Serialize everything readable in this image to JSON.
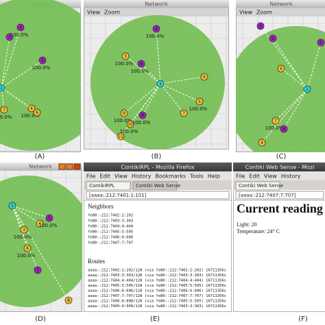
{
  "panels": [
    {
      "label": "(A)",
      "window_title": "Network",
      "nodes": [
        {
          "id": "1",
          "color": "#2fd6d0"
        },
        {
          "id": "2",
          "color": "#a020c0",
          "label": "100.0%"
        },
        {
          "id": "3",
          "color": "#a020c0"
        },
        {
          "id": "5",
          "color": "#a020c0",
          "label": "100.0%"
        },
        {
          "id": "4",
          "color": "#f2c230",
          "label": "100.0%"
        },
        {
          "id": "6",
          "color": "#f2c230"
        },
        {
          "id": "7",
          "color": "#f2c230",
          "label": "100.0%"
        }
      ]
    },
    {
      "label": "(B)",
      "window_title": "Network",
      "menu": [
        "View",
        "Zoom"
      ],
      "nodes": [
        {
          "id": "1",
          "color": "#2fd6d0"
        },
        {
          "id": "2",
          "color": "#a020c0",
          "label": "100.0%"
        },
        {
          "id": "3",
          "color": "#f2c230",
          "label": "100.0%"
        },
        {
          "id": "4",
          "color": "#a020c0",
          "label": "100.0%"
        },
        {
          "id": "6",
          "color": "#f2c230"
        },
        {
          "id": "5",
          "color": "#f2c230",
          "label": "100.0%"
        },
        {
          "id": "7",
          "color": "#f2c230"
        },
        {
          "id": "8",
          "color": "#a020c0",
          "label": "100.0%"
        },
        {
          "id": "9",
          "color": "#f2c230",
          "label": "100.0%"
        },
        {
          "id": "10",
          "color": "#f2c230",
          "label": "100.0%"
        },
        {
          "id": "11",
          "color": "#f2c230"
        }
      ]
    },
    {
      "label": "(C)",
      "window_title": "Network",
      "menu": [
        "View",
        "Zoom"
      ],
      "nodes": [
        {
          "id": "1",
          "color": "#2fd6d0"
        },
        {
          "id": "3",
          "color": "#a020c0"
        },
        {
          "id": "2",
          "color": "#a020c0"
        },
        {
          "id": "5",
          "color": "#a020c0"
        },
        {
          "id": "6",
          "color": "#f2c230"
        },
        {
          "id": "7",
          "color": "#f2c230",
          "label": "100.0%"
        },
        {
          "id": "8",
          "color": "#a020c0"
        },
        {
          "id": "4",
          "color": "#f2c230"
        }
      ]
    },
    {
      "label": "(D)",
      "window_title": "Network",
      "nodes": [
        {
          "id": "1",
          "color": "#2fd6d0"
        },
        {
          "id": "3",
          "color": "#f2c230",
          "label": "100.0%"
        },
        {
          "id": "4",
          "color": "#f2c230"
        },
        {
          "id": "5",
          "color": "#a020c0",
          "label": "100.0%"
        },
        {
          "id": "6",
          "color": "#f2c230",
          "label": "100.0%"
        },
        {
          "id": "7",
          "color": "#a020c0"
        },
        {
          "id": "8",
          "color": "#f2c230"
        }
      ]
    }
  ],
  "browser_e": {
    "label": "(E)",
    "window_title": "ContikiRPL - Mozilla Firefox",
    "menu": [
      "File",
      "Edit",
      "View",
      "History",
      "Bookmarks",
      "Tools",
      "Help"
    ],
    "tabs": [
      "ContikiRPL",
      "Contiki Web Sense"
    ],
    "url": "[aaaa::212:7401:1:101]",
    "neighbors_heading": "Neighbors",
    "neighbors": [
      "fe80::212:7402:2:202",
      "fe80::212:7403:3:303",
      "fe80::212:7404:4:404",
      "fe80::212:7405:5:505",
      "fe80::212:7406:6:606",
      "fe80::212:7407:7:707"
    ],
    "routes_heading": "Routes",
    "routes": [
      "aaaa::212:7402:2:202/128 (via fe80::212:7402:2:202) 16711356s",
      "aaaa::212:7403:3:303/128 (via fe80::212:7403:3:303) 16711356s",
      "aaaa::212:7404:4:404/128 (via fe80::212:7404:4:404) 16711356s",
      "aaaa::212:7405:5:505/128 (via fe80::212:7405:5:505) 16711356s",
      "aaaa::212:7406:6:606/128 (via fe80::212:7406:6:606) 16711356s",
      "aaaa::212:7407:7:707/128 (via fe80::212:7407:7:707) 16711356s",
      "aaaa::212:7408:8:808/128 (via fe80::212:7405:5:505) 16711356s",
      "aaaa::212:7409:9:909/128 (via fe80::212:7403:3:303) 16711356s"
    ]
  },
  "browser_f": {
    "label": "(F)",
    "window_title": "Contiki Web Sense - Mozi",
    "menu": [
      "File",
      "Edit",
      "View",
      "History"
    ],
    "tabs": [
      "Contiki Web Sense"
    ],
    "url": "[aaaa::212:7407:7:707]",
    "heading": "Current reading",
    "lines": [
      "Light: 20",
      "Temperature: 24° C"
    ]
  }
}
